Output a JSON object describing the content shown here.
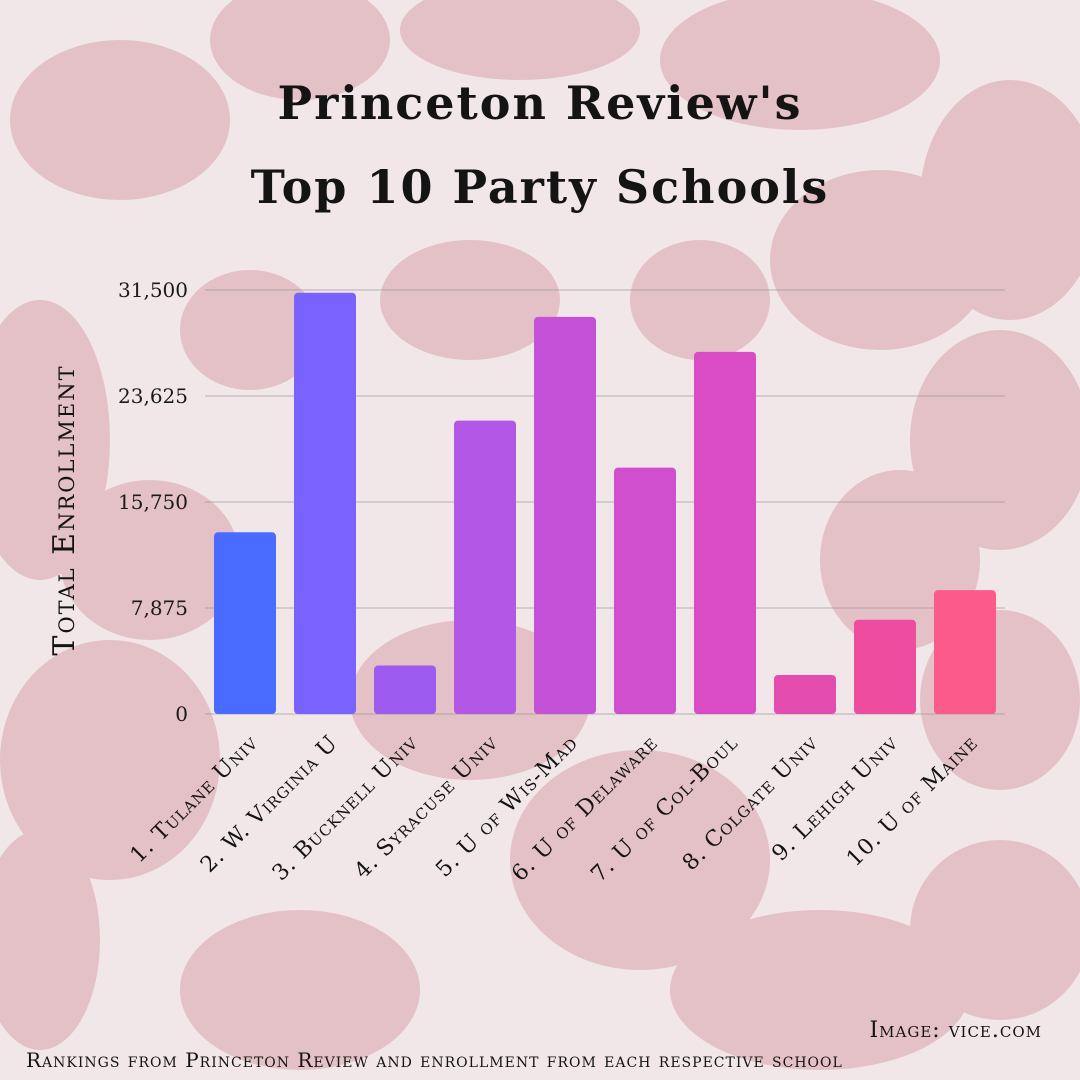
{
  "chart_data": {
    "type": "bar",
    "title": [
      "Princeton Review's",
      "Top 10 Party Schools"
    ],
    "ylabel": "Total Enrollment",
    "xlabel": "",
    "ylim": [
      0,
      31500
    ],
    "yticks": [
      "0",
      "7,875",
      "15,750",
      "23,625",
      "31,500"
    ],
    "ytick_values": [
      0,
      7875,
      15750,
      23625,
      31500
    ],
    "grid": true,
    "categories": [
      "1. Tulane Univ",
      "2. W. Virginia U",
      "3. Bucknell Univ",
      "4. Syracuse Univ",
      "5. U of Wis-Mad",
      "6. U of Delaware",
      "7. U of Col-Boul",
      "8. Colgate Univ",
      "9. Lehigh Univ",
      "10. U of Maine"
    ],
    "values": [
      13500,
      31300,
      3600,
      21800,
      29500,
      18300,
      26900,
      2900,
      7000,
      9200
    ],
    "colors": [
      "#4a6bff",
      "#7a62ff",
      "#9d5bef",
      "#b357e6",
      "#c451d8",
      "#d04fcf",
      "#da4cc6",
      "#e44cb0",
      "#ee4c9e",
      "#fb5a8a"
    ]
  },
  "credit": "Image: vice.com",
  "note": "Rankings from Princeton Review and enrollment from each respective school"
}
